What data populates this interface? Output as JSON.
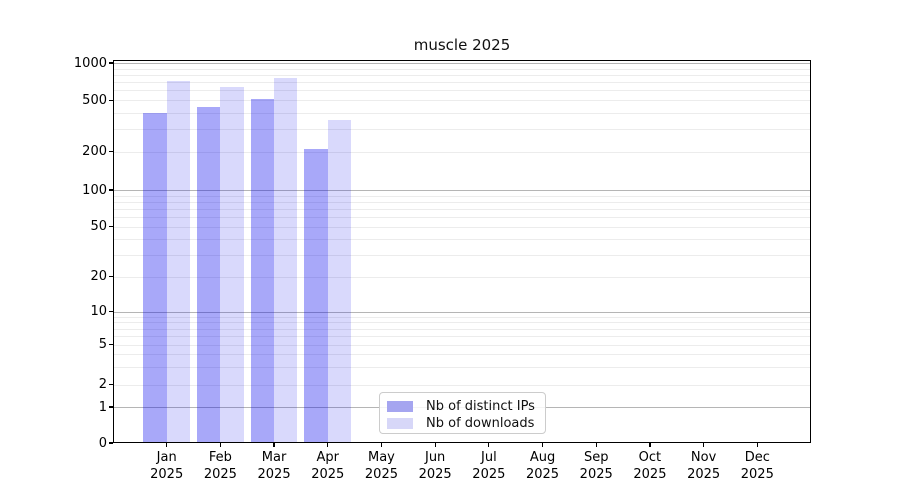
{
  "chart_data": {
    "type": "bar",
    "title": "muscle 2025",
    "year": "2025",
    "categories": [
      "Jan",
      "Feb",
      "Mar",
      "Apr",
      "May",
      "Jun",
      "Jul",
      "Aug",
      "Sep",
      "Oct",
      "Nov",
      "Dec"
    ],
    "series": [
      {
        "name": "Nb of distinct IPs",
        "color": "#a5a5f0",
        "fill": "rgba(0,0,238,0.34)",
        "values": [
          400,
          445,
          515,
          210,
          null,
          null,
          null,
          null,
          null,
          null,
          null,
          null
        ]
      },
      {
        "name": "Nb of downloads",
        "color": "#d7d7f8",
        "fill": "rgba(0,0,238,0.15)",
        "values": [
          710,
          640,
          760,
          350,
          null,
          null,
          null,
          null,
          null,
          null,
          null,
          null
        ]
      }
    ],
    "yscale": "symlog",
    "ylim": [
      0,
      1000
    ],
    "y_ticks": [
      0,
      1,
      2,
      5,
      10,
      20,
      50,
      100,
      200,
      500,
      1000
    ],
    "grid": "on",
    "legend_position": "lower center",
    "grid_major_color": "#b5b5b5",
    "grid_minor_color": "#ececec"
  }
}
